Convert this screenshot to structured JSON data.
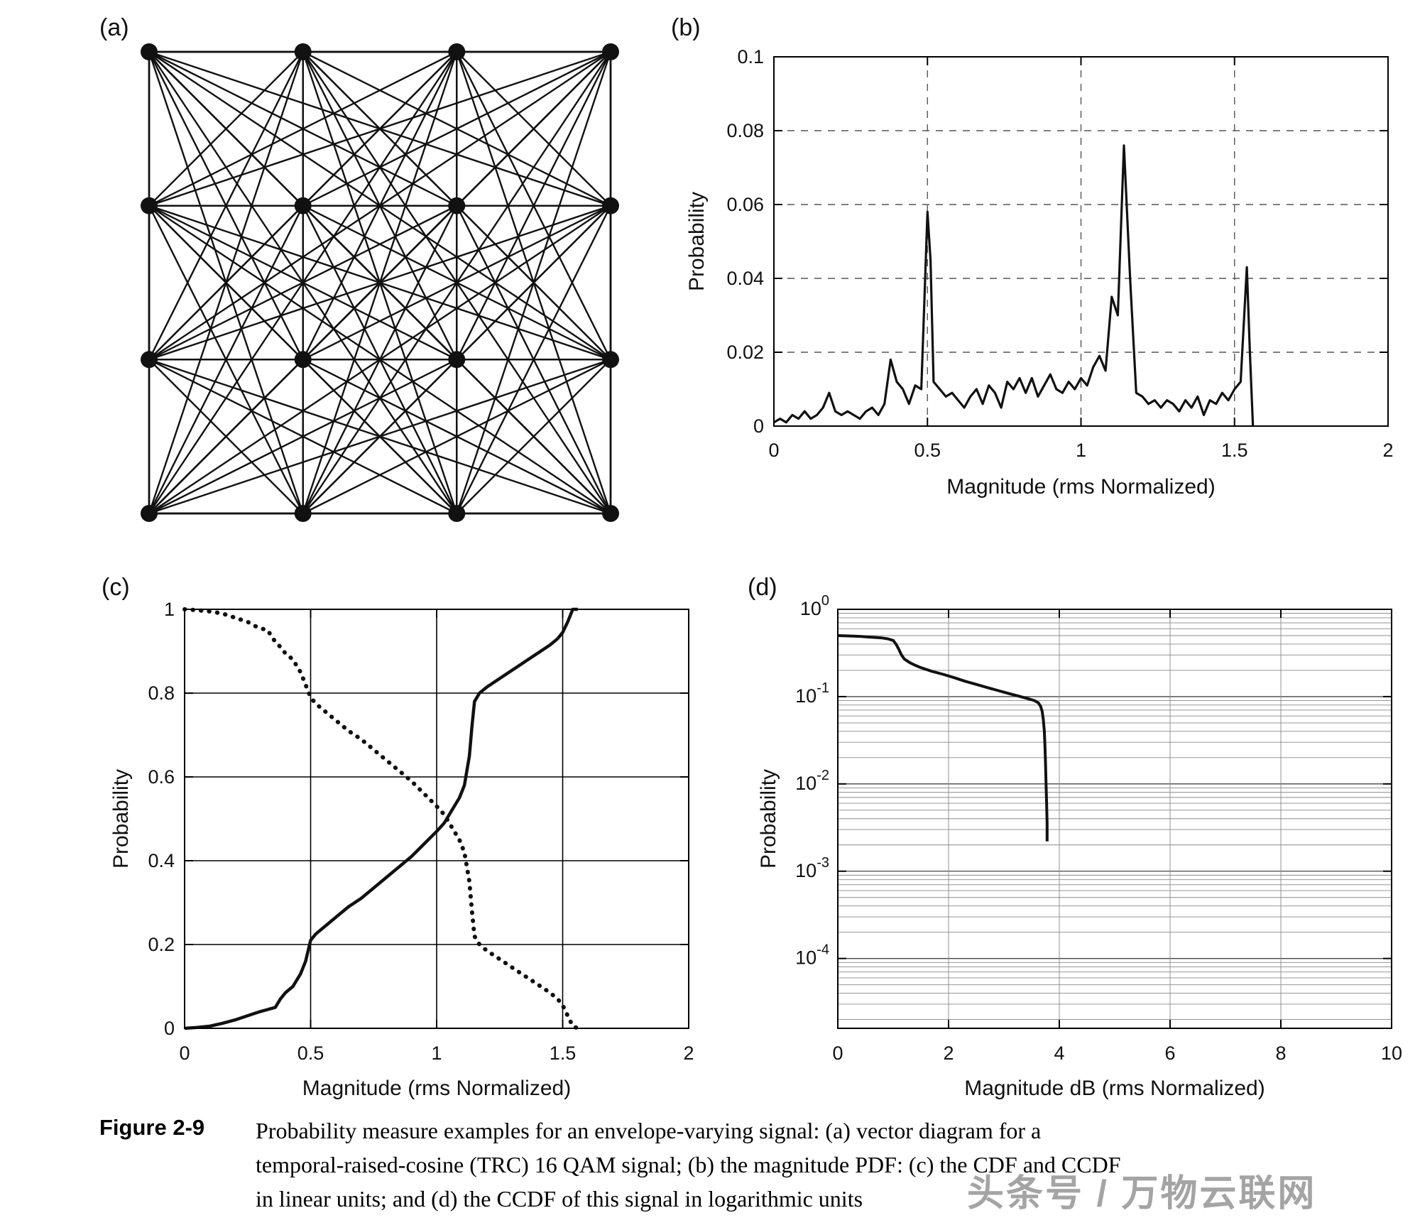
{
  "figure_caption": {
    "label": "Figure 2-9",
    "lines": [
      "Probability measure examples for an envelope-varying signal: (a) vector diagram for a",
      "temporal-raised-cosine (TRC) 16 QAM signal; (b) the magnitude PDF: (c) the CDF and CCDF",
      "in linear units; and (d) the CCDF of this signal in logarithmic units"
    ]
  },
  "watermark": {
    "text": "头条号 / 万物云联网"
  },
  "panels": {
    "a": "(a)",
    "b": "(b)",
    "c": "(c)",
    "d": "(d)"
  },
  "chart_data": [
    {
      "id": "a",
      "type": "scatter",
      "render": "vector",
      "title": "Vector diagram of a temporal-raised-cosine (TRC) 16 QAM signal",
      "grid_rows": 4,
      "grid_cols": 4,
      "points_x": [
        -3,
        -1,
        1,
        3
      ],
      "points_y": [
        -3,
        -1,
        1,
        3
      ],
      "note": "16 constellation dots on a 4x4 grid with straight transition lines between every pair of points"
    },
    {
      "id": "b",
      "type": "line",
      "render": "xy",
      "xlabel": "Magnitude (rms Normalized)",
      "ylabel": "Probability",
      "xlim": [
        0,
        2
      ],
      "ylim": [
        0,
        0.1
      ],
      "xticks": [
        0,
        0.5,
        1,
        1.5,
        2
      ],
      "xtick_labels": [
        "0",
        "0.5",
        "1",
        "1.5",
        "2"
      ],
      "yticks": [
        0,
        0.02,
        0.04,
        0.06,
        0.08,
        0.1
      ],
      "ytick_labels": [
        "0",
        "0.02",
        "0.04",
        "0.06",
        "0.08",
        "0.1"
      ],
      "grid": "dashed",
      "series": [
        {
          "name": "magnitude PDF",
          "style": "solid",
          "points": [
            [
              0,
              0.001
            ],
            [
              0.02,
              0.002
            ],
            [
              0.04,
              0.001
            ],
            [
              0.06,
              0.003
            ],
            [
              0.08,
              0.002
            ],
            [
              0.1,
              0.004
            ],
            [
              0.12,
              0.002
            ],
            [
              0.14,
              0.003
            ],
            [
              0.16,
              0.005
            ],
            [
              0.18,
              0.009
            ],
            [
              0.2,
              0.004
            ],
            [
              0.22,
              0.003
            ],
            [
              0.24,
              0.004
            ],
            [
              0.26,
              0.003
            ],
            [
              0.28,
              0.002
            ],
            [
              0.3,
              0.004
            ],
            [
              0.32,
              0.005
            ],
            [
              0.34,
              0.003
            ],
            [
              0.36,
              0.006
            ],
            [
              0.38,
              0.018
            ],
            [
              0.4,
              0.012
            ],
            [
              0.42,
              0.01
            ],
            [
              0.44,
              0.006
            ],
            [
              0.46,
              0.011
            ],
            [
              0.48,
              0.01
            ],
            [
              0.5,
              0.058
            ],
            [
              0.51,
              0.045
            ],
            [
              0.52,
              0.012
            ],
            [
              0.54,
              0.01
            ],
            [
              0.56,
              0.008
            ],
            [
              0.58,
              0.009
            ],
            [
              0.6,
              0.007
            ],
            [
              0.62,
              0.005
            ],
            [
              0.64,
              0.008
            ],
            [
              0.66,
              0.01
            ],
            [
              0.68,
              0.006
            ],
            [
              0.7,
              0.011
            ],
            [
              0.72,
              0.009
            ],
            [
              0.74,
              0.005
            ],
            [
              0.76,
              0.012
            ],
            [
              0.78,
              0.01
            ],
            [
              0.8,
              0.013
            ],
            [
              0.82,
              0.009
            ],
            [
              0.84,
              0.013
            ],
            [
              0.86,
              0.008
            ],
            [
              0.88,
              0.011
            ],
            [
              0.9,
              0.014
            ],
            [
              0.92,
              0.01
            ],
            [
              0.94,
              0.009
            ],
            [
              0.96,
              0.012
            ],
            [
              0.98,
              0.01
            ],
            [
              1,
              0.013
            ],
            [
              1.02,
              0.011
            ],
            [
              1.04,
              0.016
            ],
            [
              1.06,
              0.019
            ],
            [
              1.08,
              0.015
            ],
            [
              1.1,
              0.035
            ],
            [
              1.12,
              0.03
            ],
            [
              1.14,
              0.076
            ],
            [
              1.16,
              0.04
            ],
            [
              1.18,
              0.009
            ],
            [
              1.2,
              0.008
            ],
            [
              1.22,
              0.006
            ],
            [
              1.24,
              0.007
            ],
            [
              1.26,
              0.005
            ],
            [
              1.28,
              0.007
            ],
            [
              1.3,
              0.006
            ],
            [
              1.32,
              0.004
            ],
            [
              1.34,
              0.007
            ],
            [
              1.36,
              0.005
            ],
            [
              1.38,
              0.008
            ],
            [
              1.4,
              0.003
            ],
            [
              1.42,
              0.007
            ],
            [
              1.44,
              0.006
            ],
            [
              1.46,
              0.009
            ],
            [
              1.48,
              0.007
            ],
            [
              1.5,
              0.01
            ],
            [
              1.52,
              0.012
            ],
            [
              1.54,
              0.043
            ],
            [
              1.55,
              0.02
            ],
            [
              1.56,
              0
            ]
          ]
        }
      ]
    },
    {
      "id": "c",
      "type": "line",
      "render": "xy",
      "xlabel": "Magnitude (rms Normalized)",
      "ylabel": "Probability",
      "xlim": [
        0,
        2
      ],
      "ylim": [
        0,
        1
      ],
      "xticks": [
        0,
        0.5,
        1,
        1.5,
        2
      ],
      "xtick_labels": [
        "0",
        "0.5",
        "1",
        "1.5",
        "2"
      ],
      "yticks": [
        0,
        0.2,
        0.4,
        0.6,
        0.8,
        1
      ],
      "ytick_labels": [
        "0",
        "0.2",
        "0.4",
        "0.6",
        "0.8",
        "1"
      ],
      "grid": "solid",
      "series": [
        {
          "name": "CDF",
          "style": "solid",
          "points": [
            [
              0,
              0
            ],
            [
              0.05,
              0.002
            ],
            [
              0.1,
              0.005
            ],
            [
              0.15,
              0.012
            ],
            [
              0.2,
              0.02
            ],
            [
              0.25,
              0.03
            ],
            [
              0.3,
              0.04
            ],
            [
              0.33,
              0.045
            ],
            [
              0.36,
              0.05
            ],
            [
              0.38,
              0.07
            ],
            [
              0.4,
              0.085
            ],
            [
              0.43,
              0.1
            ],
            [
              0.46,
              0.13
            ],
            [
              0.48,
              0.16
            ],
            [
              0.5,
              0.21
            ],
            [
              0.52,
              0.225
            ],
            [
              0.55,
              0.24
            ],
            [
              0.6,
              0.265
            ],
            [
              0.65,
              0.29
            ],
            [
              0.7,
              0.31
            ],
            [
              0.75,
              0.335
            ],
            [
              0.8,
              0.36
            ],
            [
              0.85,
              0.385
            ],
            [
              0.9,
              0.41
            ],
            [
              0.95,
              0.44
            ],
            [
              1,
              0.47
            ],
            [
              1.03,
              0.49
            ],
            [
              1.06,
              0.52
            ],
            [
              1.09,
              0.55
            ],
            [
              1.11,
              0.58
            ],
            [
              1.13,
              0.65
            ],
            [
              1.14,
              0.72
            ],
            [
              1.15,
              0.78
            ],
            [
              1.17,
              0.8
            ],
            [
              1.2,
              0.815
            ],
            [
              1.25,
              0.835
            ],
            [
              1.3,
              0.855
            ],
            [
              1.35,
              0.875
            ],
            [
              1.4,
              0.895
            ],
            [
              1.45,
              0.915
            ],
            [
              1.48,
              0.93
            ],
            [
              1.5,
              0.945
            ],
            [
              1.52,
              0.97
            ],
            [
              1.54,
              1
            ],
            [
              1.56,
              1
            ]
          ]
        },
        {
          "name": "CCDF",
          "style": "dotted",
          "points": [
            [
              0,
              1
            ],
            [
              0.05,
              0.998
            ],
            [
              0.1,
              0.995
            ],
            [
              0.15,
              0.99
            ],
            [
              0.2,
              0.98
            ],
            [
              0.25,
              0.97
            ],
            [
              0.28,
              0.96
            ],
            [
              0.3,
              0.955
            ],
            [
              0.33,
              0.95
            ],
            [
              0.35,
              0.93
            ],
            [
              0.38,
              0.91
            ],
            [
              0.4,
              0.895
            ],
            [
              0.43,
              0.88
            ],
            [
              0.46,
              0.85
            ],
            [
              0.48,
              0.82
            ],
            [
              0.5,
              0.79
            ],
            [
              0.52,
              0.775
            ],
            [
              0.55,
              0.76
            ],
            [
              0.6,
              0.735
            ],
            [
              0.65,
              0.71
            ],
            [
              0.7,
              0.69
            ],
            [
              0.75,
              0.665
            ],
            [
              0.8,
              0.64
            ],
            [
              0.85,
              0.615
            ],
            [
              0.9,
              0.59
            ],
            [
              0.95,
              0.56
            ],
            [
              1,
              0.53
            ],
            [
              1.03,
              0.51
            ],
            [
              1.06,
              0.48
            ],
            [
              1.09,
              0.45
            ],
            [
              1.11,
              0.42
            ],
            [
              1.13,
              0.35
            ],
            [
              1.14,
              0.28
            ],
            [
              1.15,
              0.22
            ],
            [
              1.17,
              0.2
            ],
            [
              1.2,
              0.185
            ],
            [
              1.25,
              0.165
            ],
            [
              1.3,
              0.145
            ],
            [
              1.35,
              0.125
            ],
            [
              1.4,
              0.105
            ],
            [
              1.45,
              0.085
            ],
            [
              1.48,
              0.07
            ],
            [
              1.5,
              0.055
            ],
            [
              1.52,
              0.03
            ],
            [
              1.54,
              0.005
            ],
            [
              1.56,
              0
            ]
          ]
        }
      ]
    },
    {
      "id": "d",
      "type": "line",
      "render": "xy",
      "yscale": "log",
      "xlabel": "Magnitude dB (rms Normalized)",
      "ylabel": "Probability",
      "xlim": [
        0,
        10
      ],
      "xticks": [
        0,
        2,
        4,
        6,
        8,
        10
      ],
      "xtick_labels": [
        "0",
        "2",
        "4",
        "6",
        "8",
        "10"
      ],
      "ylim_exp": [
        -4.8,
        0
      ],
      "ytick_exponents": [
        0,
        -1,
        -2,
        -3,
        -4
      ],
      "grid": "log",
      "series": [
        {
          "name": "CCDF (log units)",
          "style": "solid",
          "points": [
            [
              0,
              0.5
            ],
            [
              0.2,
              0.495
            ],
            [
              0.4,
              0.49
            ],
            [
              0.6,
              0.48
            ],
            [
              0.8,
              0.47
            ],
            [
              0.9,
              0.46
            ],
            [
              1,
              0.44
            ],
            [
              1.05,
              0.4
            ],
            [
              1.1,
              0.35
            ],
            [
              1.15,
              0.3
            ],
            [
              1.2,
              0.27
            ],
            [
              1.3,
              0.245
            ],
            [
              1.4,
              0.228
            ],
            [
              1.5,
              0.215
            ],
            [
              1.7,
              0.195
            ],
            [
              1.9,
              0.18
            ],
            [
              2.1,
              0.165
            ],
            [
              2.3,
              0.15
            ],
            [
              2.5,
              0.138
            ],
            [
              2.7,
              0.127
            ],
            [
              2.9,
              0.117
            ],
            [
              3.1,
              0.108
            ],
            [
              3.3,
              0.1
            ],
            [
              3.45,
              0.094
            ],
            [
              3.55,
              0.09
            ],
            [
              3.62,
              0.085
            ],
            [
              3.66,
              0.078
            ],
            [
              3.69,
              0.068
            ],
            [
              3.71,
              0.055
            ],
            [
              3.73,
              0.04
            ],
            [
              3.74,
              0.028
            ],
            [
              3.75,
              0.018
            ],
            [
              3.76,
              0.01
            ],
            [
              3.77,
              0.006
            ],
            [
              3.78,
              0.0035
            ],
            [
              3.78,
              0.0022
            ]
          ]
        }
      ]
    }
  ]
}
